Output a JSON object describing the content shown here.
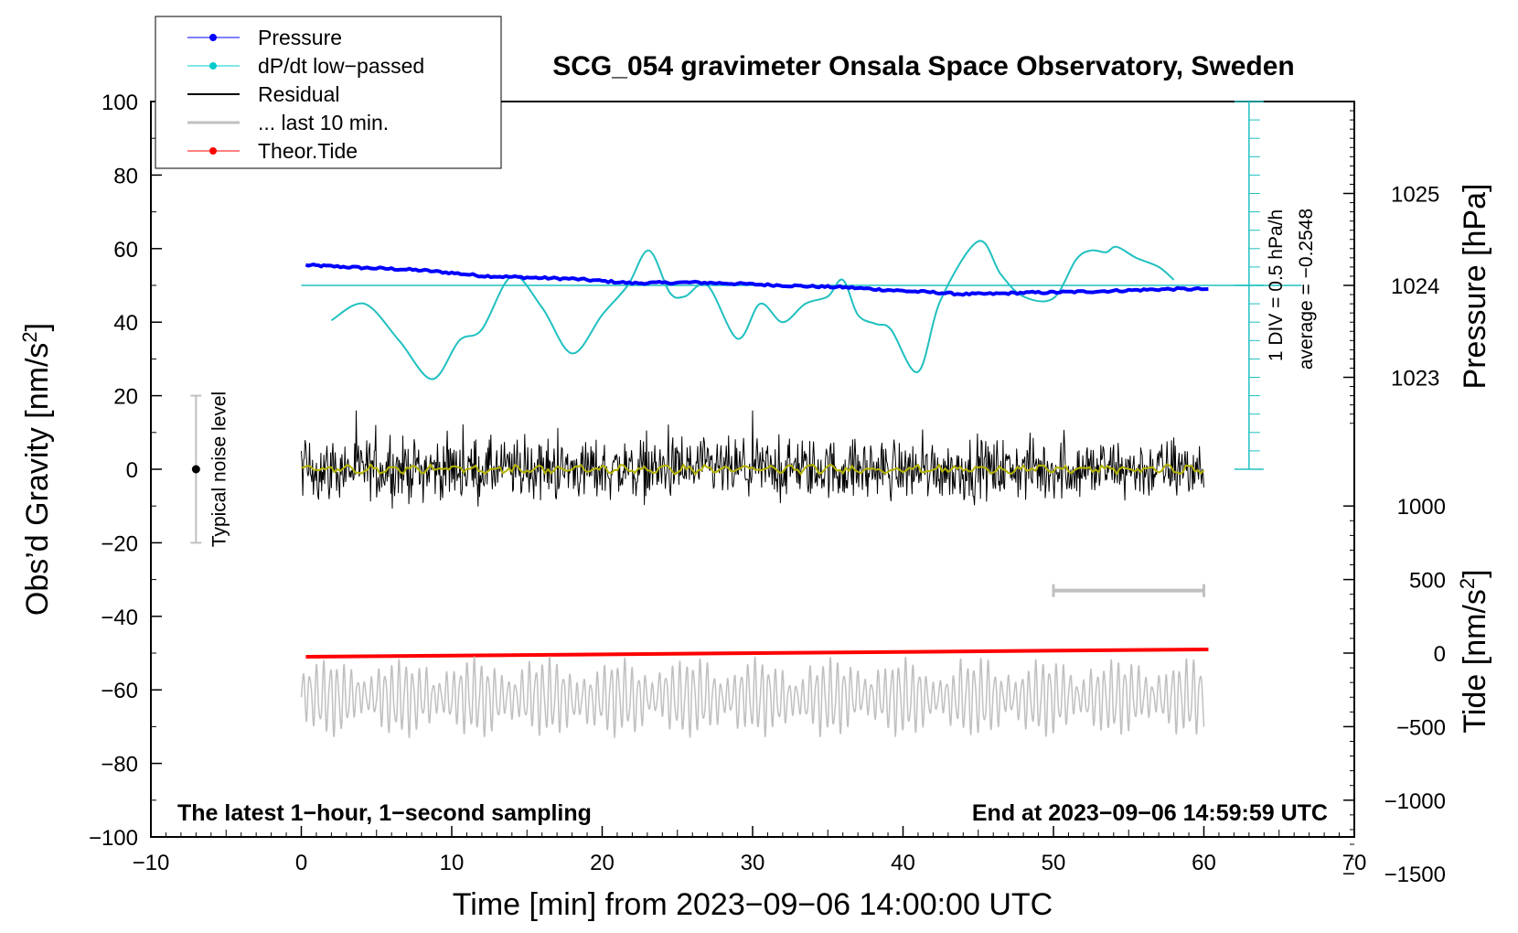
{
  "chart_data": {
    "type": "line",
    "title": "SCG_054 gravimeter Onsala Space Observatory, Sweden",
    "xlabel": "Time [min] from 2023−09−06 14:00:00 UTC",
    "xlim": [
      -10,
      70
    ],
    "x_ticks": [
      "−10",
      "0",
      "10",
      "20",
      "30",
      "40",
      "50",
      "60",
      "70"
    ],
    "x_tick_values": [
      -10,
      0,
      10,
      20,
      30,
      40,
      50,
      60,
      70
    ],
    "left_axis": {
      "label_main": "Obs’d Gravity [nm/s",
      "label_sup": "2",
      "label_end": "]",
      "ylim": [
        -100,
        100
      ],
      "tick_values": [
        -100,
        -80,
        -60,
        -40,
        -20,
        0,
        20,
        40,
        60,
        80,
        100
      ],
      "tick_labels": [
        "−100",
        "−80",
        "−60",
        "−40",
        "−20",
        "0",
        "20",
        "40",
        "60",
        "80",
        "100"
      ]
    },
    "pressure_axis": {
      "label": "Pressure [hPa]",
      "tick_values": [
        1023,
        1024,
        1025
      ],
      "tick_labels": [
        "1023",
        "1024",
        "1025"
      ],
      "ref_hpa": 1024,
      "ref_gravity": 50,
      "hpa_per_gravity_unit": 0.04
    },
    "tide_axis": {
      "label_main": "Tide [nm/s",
      "label_sup": "2",
      "label_end": "]",
      "tick_values": [
        -1500,
        -1000,
        -500,
        0,
        500,
        1000
      ],
      "tick_labels": [
        "−1500",
        "−1000",
        "−500",
        "0",
        "500",
        "1000"
      ],
      "ref_tide": 0,
      "ref_gravity": -50,
      "tide_per_gravity_unit": 25
    },
    "legend": [
      {
        "label": "Pressure",
        "color": "#0000ff",
        "marker": true
      },
      {
        "label": "dP/dt low−passed",
        "color": "#00cccc",
        "marker": true
      },
      {
        "label": "Residual",
        "color": "#000000",
        "marker": false
      },
      {
        "label": "... last 10 min.",
        "color": "#c0c0c0",
        "marker": false
      },
      {
        "label": "Theor.Tide",
        "color": "#ff0000",
        "marker": true
      }
    ],
    "noise_level": {
      "label": "Typical noise level",
      "x": -7,
      "center": 0,
      "range": [
        -20,
        20
      ]
    },
    "dpdt_scale": {
      "label": "1 DIV = 0.5 hPa/h",
      "average_label": "average = −0.2548",
      "x": 63,
      "range": [
        0,
        100
      ],
      "baseline": 50
    },
    "last10_bar": {
      "x_range": [
        50,
        60
      ],
      "y": -33
    },
    "bottom_left_note": "The latest 1−hour, 1−second sampling",
    "bottom_right_note": "End at 2023−09−06 14:59:59 UTC",
    "series": [
      {
        "name": "Pressure",
        "color": "#0000ff",
        "axis": "left",
        "x": [
          0.3,
          2,
          4,
          6,
          8,
          10,
          12,
          14,
          16,
          18,
          20,
          22,
          24,
          26,
          28,
          30,
          32,
          34,
          36,
          38,
          40,
          42,
          44,
          46,
          48,
          50,
          52,
          54,
          56,
          58,
          60.3
        ],
        "y": [
          55.5,
          55.2,
          54.8,
          54.5,
          54.1,
          53.4,
          52.6,
          52.3,
          52.0,
          51.8,
          51.2,
          50.6,
          50.7,
          50.8,
          50.6,
          50.3,
          50.0,
          49.7,
          49.5,
          49.0,
          48.5,
          48.1,
          47.6,
          47.7,
          48.0,
          48.1,
          48.3,
          48.5,
          48.8,
          49.0,
          49.0
        ]
      },
      {
        "name": "dP/dt low-passed",
        "color": "#20c0c0",
        "axis": "left",
        "x": [
          2,
          4.2,
          6.5,
          8.7,
          10.5,
          12,
          14,
          16,
          18,
          20,
          21.7,
          23.1,
          24.5,
          25.5,
          27,
          29,
          30.5,
          32,
          33.5,
          35,
          36,
          37,
          38.2,
          39.2,
          41,
          42.5,
          45,
          46.5,
          48,
          50,
          51.5,
          52.5,
          53.5,
          54.2,
          55.5,
          57,
          58
        ],
        "y": [
          40.5,
          45,
          35,
          24.5,
          35,
          38,
          52.5,
          44,
          31.5,
          42,
          50,
          59.5,
          48,
          47,
          50,
          35.5,
          45,
          40,
          45,
          47,
          51.5,
          42,
          39.5,
          38,
          26.5,
          46,
          62,
          53,
          47,
          46.5,
          57,
          59.5,
          59,
          60.5,
          57.5,
          55,
          51.5
        ]
      },
      {
        "name": "Residual",
        "color": "#000000",
        "axis": "left",
        "x_range": [
          0,
          60
        ],
        "amplitude": 16,
        "note": "high-frequency noise around 0"
      },
      {
        "name": "Residual smoothed",
        "color": "#b3b300",
        "axis": "left",
        "x_range": [
          0,
          60
        ],
        "amplitude": 1.5
      },
      {
        "name": "Theor.Tide",
        "color": "#ff0000",
        "axis": "tide",
        "x": [
          0.3,
          60.3
        ],
        "y_tide": [
          -25,
          25
        ]
      },
      {
        "name": "... last 10 min.",
        "color": "#c0c0c0",
        "axis": "left",
        "x_range": [
          0,
          60
        ],
        "center": -62,
        "amplitude": 11
      }
    ]
  }
}
